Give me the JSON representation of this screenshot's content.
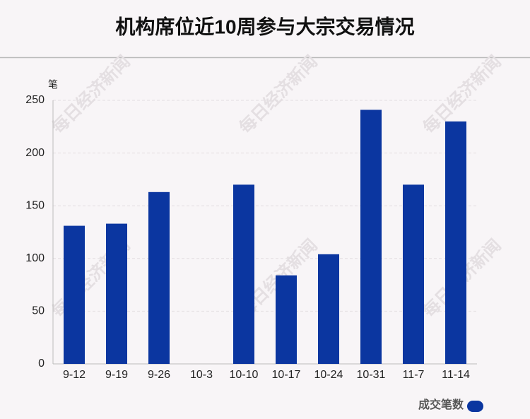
{
  "chart_data": {
    "type": "bar",
    "title": "机构席位近10周参与大宗交易情况",
    "y_label": "笔",
    "watermark": "每日经济新闻",
    "categories": [
      "9-12",
      "9-19",
      "9-26",
      "10-3",
      "10-10",
      "10-17",
      "10-24",
      "10-31",
      "11-7",
      "11-14"
    ],
    "series": [
      {
        "name": "成交笔数",
        "color": "#0b36a0",
        "values": [
          131,
          133,
          163,
          0,
          170,
          84,
          104,
          241,
          170,
          230
        ]
      }
    ],
    "ylim": [
      0,
      250
    ],
    "yticks": [
      0,
      50,
      100,
      150,
      200,
      250
    ],
    "grid": true,
    "legend": "bottom-right"
  }
}
